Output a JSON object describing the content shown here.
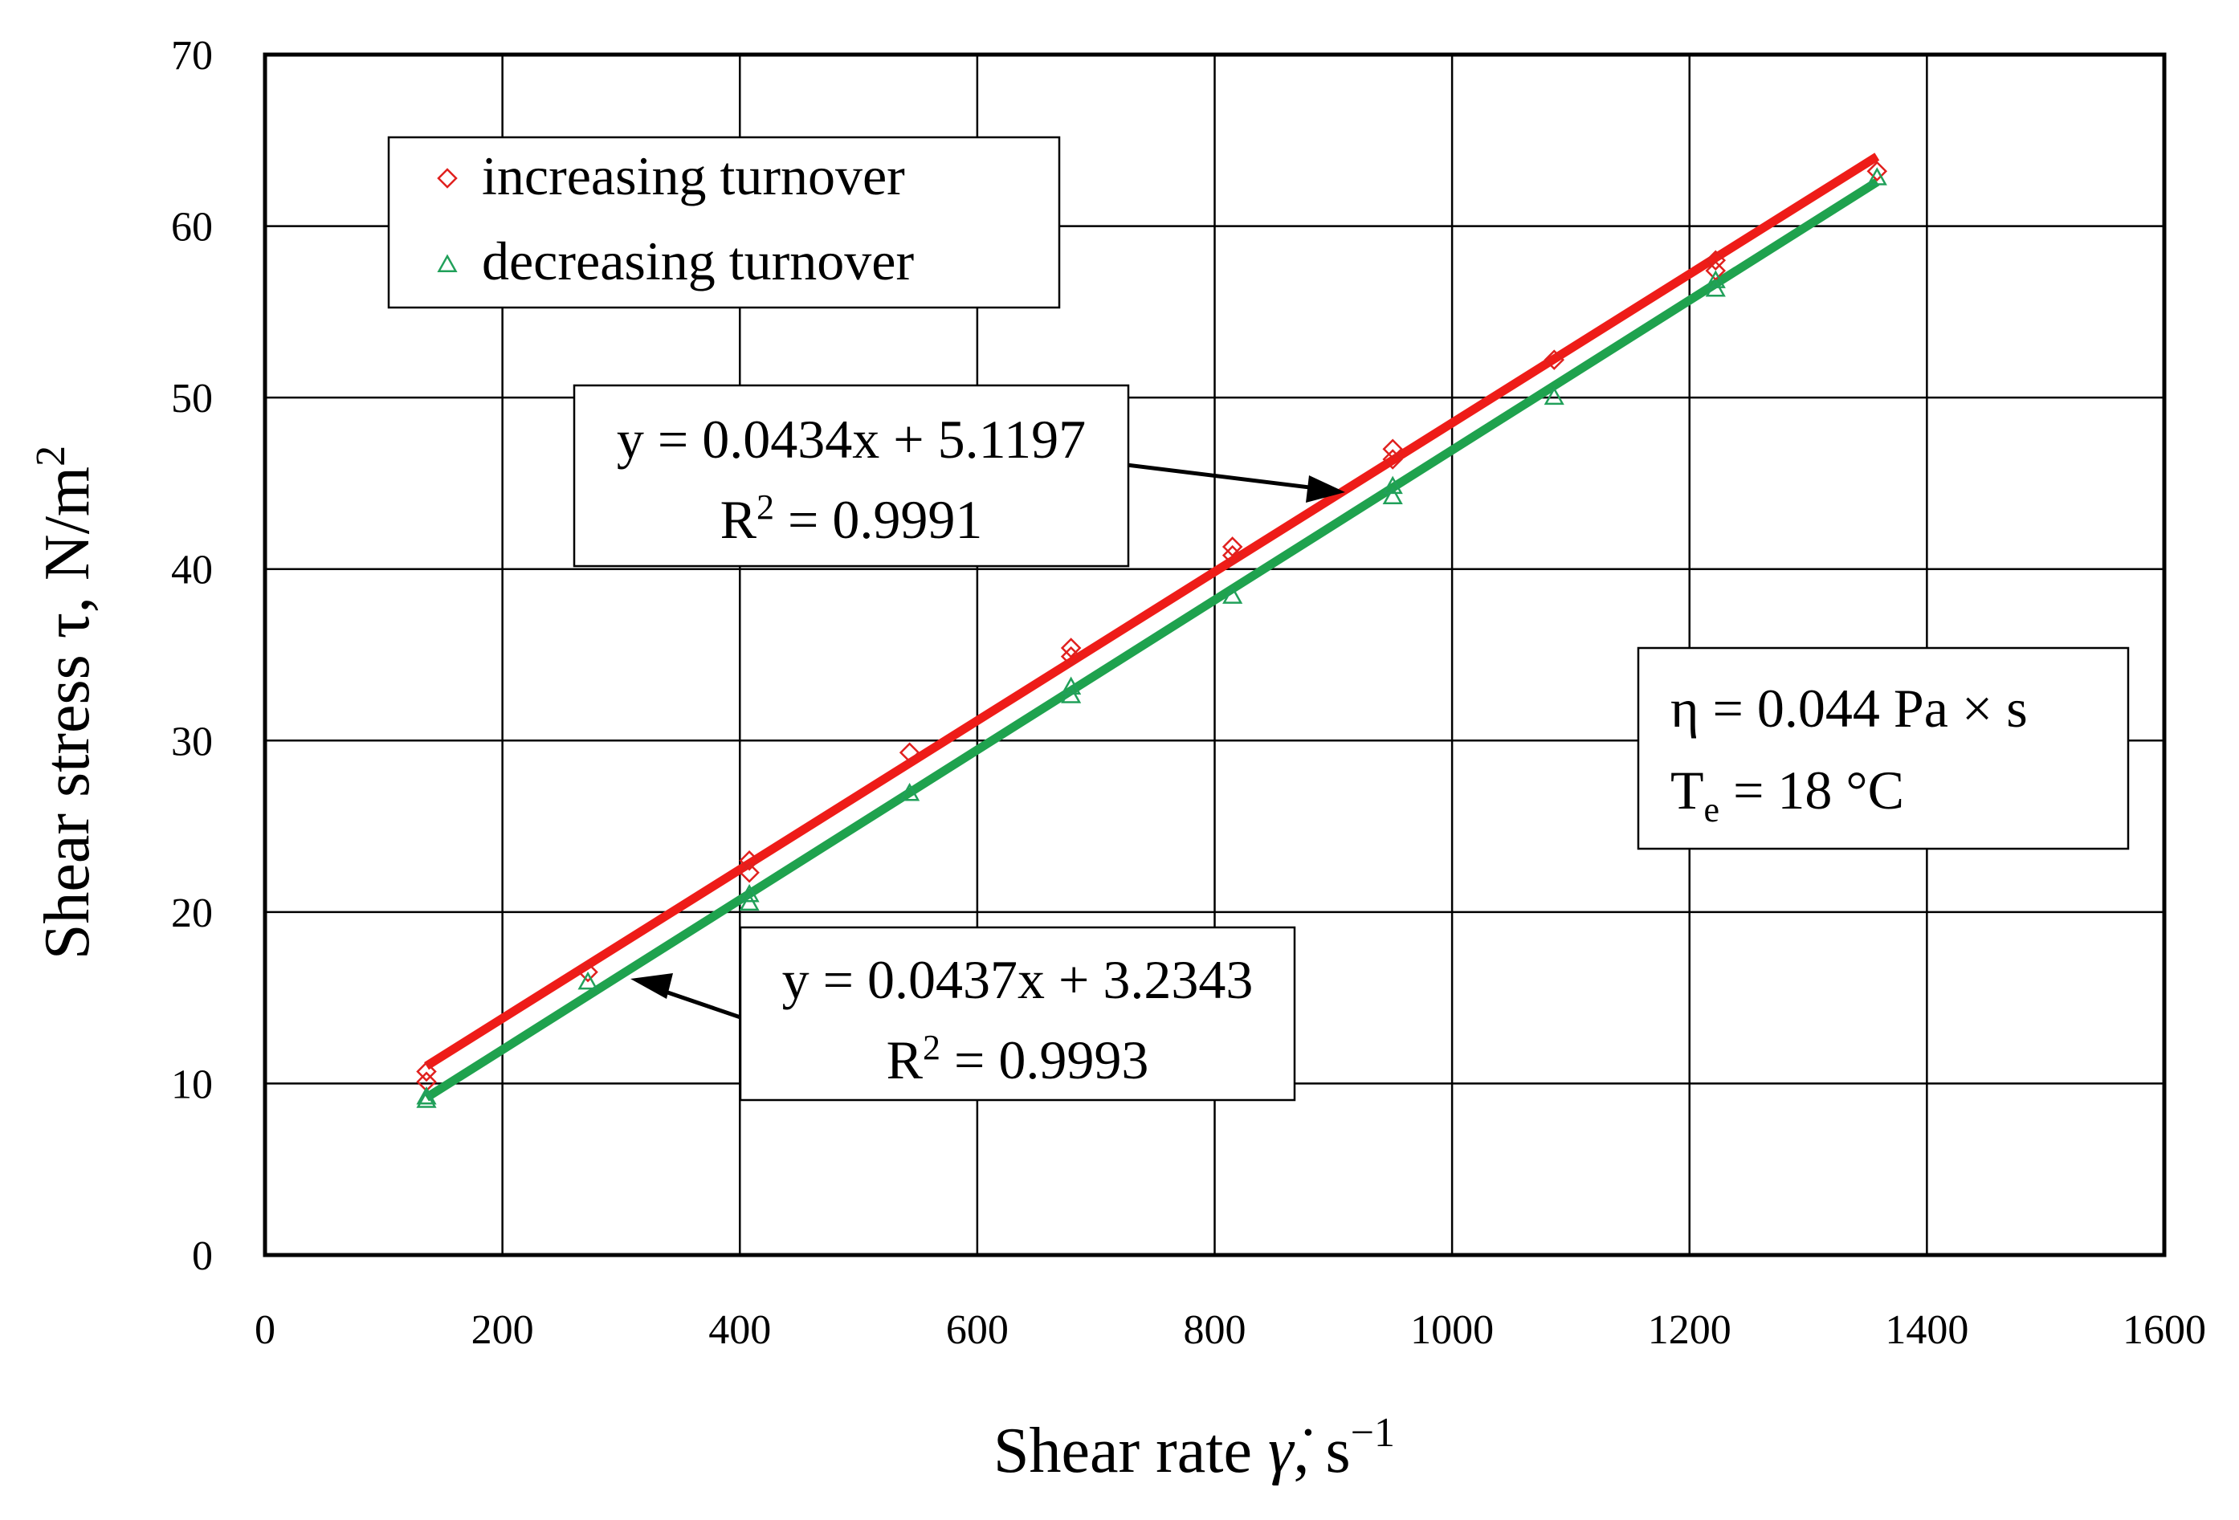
{
  "chart_data": {
    "type": "scatter",
    "title": "",
    "xlabel": {
      "main": "Shear rate ",
      "symbol": "γ̇",
      "comma": ", s",
      "sup": "−1"
    },
    "ylabel": {
      "main": "Shear stress τ, N/m",
      "sup": "2"
    },
    "xlim": [
      0,
      1600
    ],
    "ylim": [
      0,
      70
    ],
    "xticks": [
      0,
      200,
      400,
      600,
      800,
      1000,
      1200,
      1400,
      1600
    ],
    "yticks": [
      0,
      10,
      20,
      30,
      40,
      50,
      60,
      70
    ],
    "xtick_labels": [
      "0",
      "200",
      "400",
      "600",
      "800",
      "1000",
      "1200",
      "1400",
      "1600"
    ],
    "ytick_labels": [
      "0",
      "10",
      "20",
      "30",
      "40",
      "50",
      "60",
      "70"
    ],
    "grid": true,
    "legend_position": "top-left",
    "series": [
      {
        "name": "increasing turnover",
        "marker": "diamond",
        "color": "#e0201e",
        "x": [
          136,
          136,
          272,
          408,
          408,
          543,
          679,
          679,
          815,
          815,
          950,
          950,
          1086,
          1222,
          1222,
          1358
        ],
        "y": [
          10.7,
          10.1,
          16.5,
          23.0,
          22.3,
          29.3,
          35.4,
          34.9,
          41.3,
          40.8,
          47.0,
          46.4,
          52.2,
          58.0,
          57.4,
          63.2
        ],
        "trendline": {
          "slope": 0.0434,
          "intercept": 5.1197,
          "x_range": [
            136,
            1358
          ],
          "color": "#ee1c18"
        }
      },
      {
        "name": "decreasing turnover",
        "marker": "triangle",
        "color": "#21a05a",
        "x": [
          136,
          136,
          272,
          408,
          408,
          543,
          679,
          679,
          815,
          950,
          950,
          1086,
          1222,
          1222,
          1358
        ],
        "y": [
          9.2,
          9.0,
          15.9,
          21.0,
          20.5,
          26.9,
          33.1,
          32.6,
          38.4,
          44.8,
          44.2,
          50.0,
          56.8,
          56.3,
          62.8
        ],
        "trendline": {
          "slope": 0.0437,
          "intercept": 3.2343,
          "x_range": [
            136,
            1358
          ],
          "color": "#1fa24e"
        }
      }
    ],
    "annotations": {
      "eq_increasing": {
        "line1": "y = 0.0434x + 5.1197",
        "line2_base": "R",
        "line2_sup": "2",
        "line2_rest": " = 0.9991"
      },
      "eq_decreasing": {
        "line1": "y = 0.0437x + 3.2343",
        "line2_base": "R",
        "line2_sup": "2",
        "line2_rest": " = 0.9993"
      },
      "properties": {
        "eta": "η = 0.044 Pa × s",
        "te_base": "T",
        "te_sub": "e",
        "te_rest": " = 18 °C"
      }
    }
  }
}
